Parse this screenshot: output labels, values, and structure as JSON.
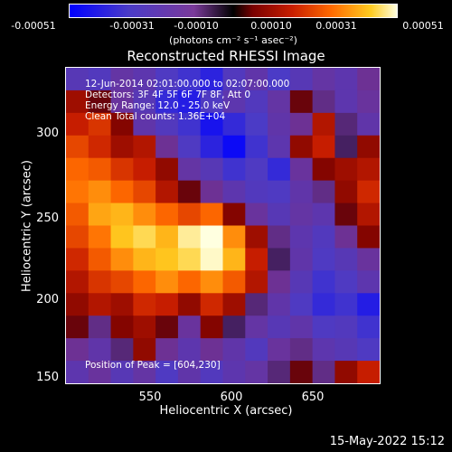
{
  "colorbar": {
    "ticks": [
      "-0.00051",
      "-0.00031",
      "-0.00010",
      "0.00010",
      "0.00031",
      "0.00051"
    ],
    "unit": "(photons cm⁻² s⁻¹ asec⁻²)"
  },
  "info": {
    "time_range": "12-Jun-2014 02:01:00.000 to 02:07:00.000",
    "detectors": "Detectors: 3F 4F 5F 6F 7F 8F, Att 0",
    "energy": "Energy Range: 12.0 - 25.0 keV",
    "clean": "Clean     Total counts: 1.36E+04",
    "peak": "Position of Peak = [604,230]"
  },
  "footer": "15-May-2022 15:12",
  "chart_data": {
    "type": "heatmap",
    "title": "Reconstructed RHESSI Image",
    "xlabel": "Heliocentric X (arcsec)",
    "ylabel": "Heliocentric Y (arcsec)",
    "x_ticks": [
      "550",
      "600",
      "650"
    ],
    "y_ticks": [
      "300",
      "250",
      "200",
      "150"
    ],
    "xlim": [
      500,
      695
    ],
    "ylim": [
      147,
      342
    ],
    "colorscale": "red-temperature (negative = blue/purple, positive = red/yellow/white)",
    "value_range": [
      -0.00051,
      0.00051
    ],
    "peak_position": [
      604,
      230
    ],
    "rows": [
      [
        -0.00025,
        -0.00028,
        -0.00018,
        -0.00022,
        -0.0003,
        -0.00035,
        -0.0004,
        -0.00028,
        -0.0002,
        -0.00032,
        -0.00025,
        -0.00018,
        -0.00022,
        -0.00012
      ],
      [
        0.00012,
        5e-05,
        -0.00015,
        -0.00025,
        -0.00038,
        -0.00042,
        -0.0003,
        -0.00022,
        -0.00028,
        -0.00018,
        5e-05,
        -0.0001,
        -0.00022,
        -0.00015
      ],
      [
        0.00018,
        0.00022,
        8e-05,
        -0.0002,
        -0.00028,
        -0.00035,
        -0.00045,
        -0.00038,
        -0.00032,
        -0.0002,
        -0.00012,
        0.00015,
        -8e-05,
        -0.0002
      ],
      [
        0.00025,
        0.0002,
        0.00012,
        0.00015,
        -0.00012,
        -0.0003,
        -0.0004,
        -0.00048,
        -0.00035,
        -0.00022,
        0.0001,
        0.00018,
        -5e-05,
        0.0001
      ],
      [
        0.0003,
        0.00028,
        0.00022,
        0.00018,
        0.0001,
        -0.00018,
        -0.00025,
        -0.00035,
        -0.0003,
        -0.00038,
        -0.00015,
        8e-05,
        0.00012,
        0.00015
      ],
      [
        0.00032,
        0.00035,
        0.0003,
        0.00025,
        0.00015,
        5e-05,
        -0.00012,
        -0.00022,
        -0.00028,
        -0.0003,
        -0.0002,
        -0.0001,
        0.0001,
        0.0002
      ],
      [
        0.00028,
        0.00038,
        0.0004,
        0.00035,
        0.0003,
        0.00025,
        0.0003,
        8e-05,
        -0.00015,
        -0.00025,
        -0.00018,
        -0.00022,
        5e-05,
        0.00015
      ],
      [
        0.00025,
        0.00032,
        0.00042,
        0.00045,
        0.0004,
        0.00048,
        0.00051,
        0.00035,
        0.00012,
        -0.0001,
        -0.00022,
        -0.00028,
        -0.00012,
        8e-05
      ],
      [
        0.0002,
        0.00028,
        0.00035,
        0.0004,
        0.00042,
        0.00045,
        0.0005,
        0.0004,
        0.00018,
        -5e-05,
        -0.0002,
        -0.0003,
        -0.00025,
        -0.00015
      ],
      [
        0.00015,
        0.00022,
        0.00025,
        0.0003,
        0.00035,
        0.0003,
        0.00035,
        0.00028,
        0.00015,
        -0.00012,
        -0.00025,
        -0.00035,
        -0.0003,
        -0.00022
      ],
      [
        0.0001,
        0.00015,
        0.00012,
        0.0002,
        0.00018,
        0.0001,
        0.0002,
        0.00012,
        -8e-05,
        -0.0002,
        -0.0003,
        -0.00038,
        -0.00035,
        -0.00042
      ],
      [
        5e-05,
        -0.0001,
        8e-05,
        0.00012,
        5e-05,
        -0.00015,
        8e-05,
        -5e-05,
        -0.00018,
        -0.00025,
        -0.0002,
        -0.0003,
        -0.00028,
        -0.00035
      ],
      [
        -0.00012,
        -0.0002,
        -8e-05,
        0.0001,
        -0.00012,
        -0.00022,
        -0.00012,
        -0.0002,
        -0.00028,
        -0.00015,
        -0.0001,
        -0.00022,
        -0.00025,
        -0.0003
      ],
      [
        -0.00022,
        -0.00015,
        -0.00025,
        -0.00018,
        -0.0003,
        -0.0002,
        -0.00028,
        -0.00022,
        -0.00018,
        -8e-05,
        5e-05,
        -0.0001,
        0.0001,
        0.00018
      ]
    ]
  }
}
